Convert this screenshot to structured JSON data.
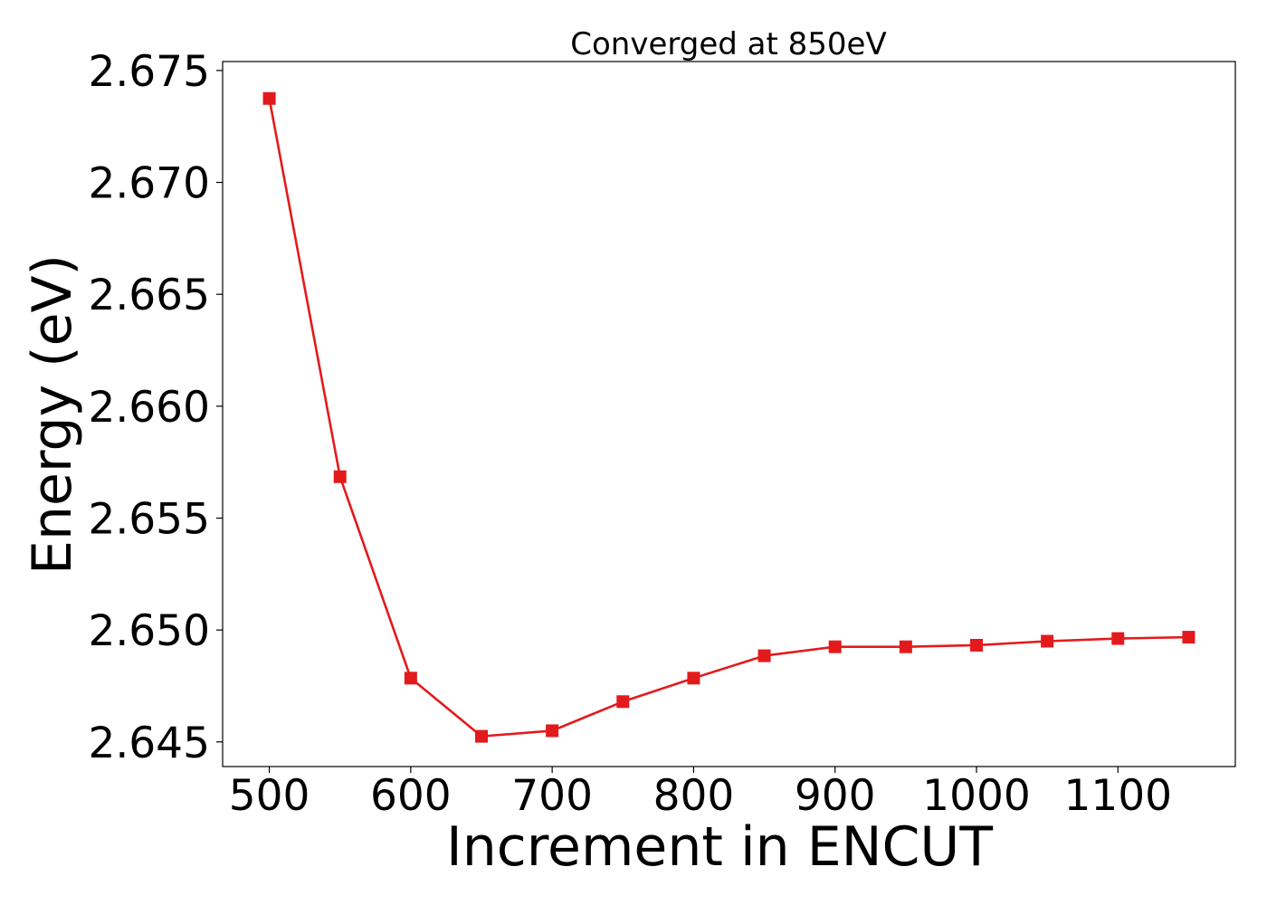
{
  "chart_data": {
    "type": "line",
    "title": "Converged at 850eV",
    "xlabel": "Increment in ENCUT",
    "ylabel": "Energy (eV)",
    "x": [
      500,
      550,
      600,
      650,
      700,
      750,
      800,
      850,
      900,
      950,
      1000,
      1050,
      1100,
      1150
    ],
    "series": [
      {
        "values": [
          2.67375,
          2.65685,
          2.64785,
          2.64525,
          2.6455,
          2.6468,
          2.64785,
          2.64885,
          2.64925,
          2.64925,
          2.64932,
          2.6495,
          2.64962,
          2.64968
        ],
        "color": "#e31a1c",
        "marker": "square"
      }
    ],
    "xlim": [
      467,
      1183
    ],
    "ylim": [
      2.6439,
      2.6754
    ],
    "xticks": [
      "500",
      "600",
      "700",
      "800",
      "900",
      "1000",
      "1100"
    ],
    "xtick_values": [
      500,
      600,
      700,
      800,
      900,
      1000,
      1100
    ],
    "yticks": [
      "2.645",
      "2.650",
      "2.655",
      "2.660",
      "2.665",
      "2.670",
      "2.675"
    ],
    "ytick_values": [
      2.645,
      2.65,
      2.655,
      2.66,
      2.665,
      2.67,
      2.675
    ],
    "grid": false,
    "legend": "none"
  }
}
